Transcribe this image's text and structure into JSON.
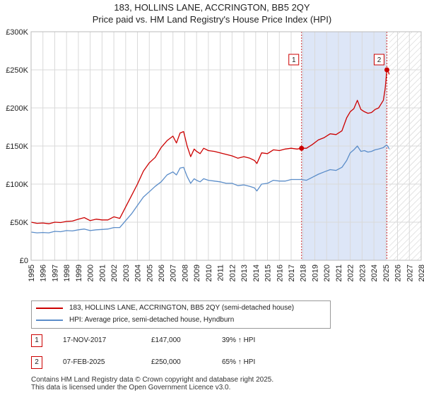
{
  "title_line1": "183, HOLLINS LANE, ACCRINGTON, BB5 2QY",
  "title_line2": "Price paid vs. HM Land Registry's House Price Index (HPI)",
  "chart_data": {
    "type": "line",
    "xlabel": "",
    "ylabel": "",
    "xlim": [
      1995,
      2028
    ],
    "ylim": [
      0,
      300000
    ],
    "yticks": [
      0,
      50000,
      100000,
      150000,
      200000,
      250000,
      300000
    ],
    "ytick_labels": [
      "£0",
      "£50K",
      "£100K",
      "£150K",
      "£200K",
      "£250K",
      "£300K"
    ],
    "xticks": [
      1995,
      1996,
      1997,
      1998,
      1999,
      2000,
      2001,
      2002,
      2003,
      2004,
      2005,
      2006,
      2007,
      2008,
      2009,
      2010,
      2011,
      2012,
      2013,
      2014,
      2015,
      2016,
      2017,
      2018,
      2019,
      2020,
      2021,
      2022,
      2023,
      2024,
      2025,
      2026,
      2027,
      2028
    ],
    "xtick_labels": [
      "1995",
      "1996",
      "1997",
      "1998",
      "1999",
      "2000",
      "2001",
      "2002",
      "2003",
      "2004",
      "2005",
      "2006",
      "2007",
      "2008",
      "2009",
      "2010",
      "2011",
      "2012",
      "2013",
      "2014",
      "2015",
      "2016",
      "2017",
      "2018",
      "2019",
      "2020",
      "2021",
      "2022",
      "2023",
      "2024",
      "2025",
      "2026",
      "2027",
      "2028"
    ],
    "grid": true,
    "shaded_region": {
      "from": 2017.88,
      "to": 2025.1,
      "color": "#dde6f7"
    },
    "hatched_region": {
      "from": 2025.3,
      "to": 2028
    },
    "series": [
      {
        "name": "183, HOLLINS LANE, ACCRINGTON, BB5 2QY (semi-detached house)",
        "color": "#cc0000",
        "x": [
          1995.0,
          1995.5,
          1996.0,
          1996.5,
          1997.0,
          1997.5,
          1998.0,
          1998.5,
          1999.0,
          1999.5,
          2000.0,
          2000.5,
          2001.0,
          2001.5,
          2002.0,
          2002.5,
          2003.0,
          2003.5,
          2004.0,
          2004.5,
          2005.0,
          2005.5,
          2006.0,
          2006.5,
          2007.0,
          2007.3,
          2007.6,
          2007.9,
          2008.2,
          2008.5,
          2008.8,
          2009.0,
          2009.3,
          2009.6,
          2010.0,
          2010.5,
          2011.0,
          2011.5,
          2012.0,
          2012.5,
          2013.0,
          2013.5,
          2013.9,
          2014.1,
          2014.5,
          2015.0,
          2015.5,
          2016.0,
          2016.5,
          2017.0,
          2017.5,
          2017.88,
          2018.3,
          2018.8,
          2019.3,
          2019.8,
          2020.3,
          2020.8,
          2021.3,
          2021.7,
          2022.0,
          2022.3,
          2022.6,
          2022.9,
          2023.2,
          2023.5,
          2023.8,
          2024.1,
          2024.4,
          2024.8,
          2024.95,
          2025.1,
          2025.2,
          2025.3
        ],
        "values": [
          50000,
          48500,
          49000,
          48000,
          50000,
          49500,
          51000,
          51500,
          54000,
          56000,
          52000,
          54000,
          53000,
          53000,
          57000,
          55000,
          70000,
          85000,
          100000,
          117000,
          128000,
          135000,
          148000,
          157000,
          163000,
          154000,
          167000,
          169000,
          150000,
          136000,
          146000,
          143000,
          140000,
          147000,
          144000,
          143000,
          141000,
          139000,
          137000,
          134000,
          136000,
          134000,
          131000,
          127000,
          141000,
          140000,
          145000,
          144000,
          146000,
          147000,
          146000,
          147000,
          147000,
          152000,
          158000,
          161000,
          166000,
          165000,
          170000,
          187000,
          195000,
          199000,
          210000,
          198000,
          195000,
          193000,
          194000,
          198000,
          200000,
          210000,
          225000,
          250000,
          248000,
          244000
        ]
      },
      {
        "name": "HPI: Average price, semi-detached house, Hyndburn",
        "color": "#5b8dc9",
        "x": [
          1995.0,
          1995.5,
          1996.0,
          1996.5,
          1997.0,
          1997.5,
          1998.0,
          1998.5,
          1999.0,
          1999.5,
          2000.0,
          2000.5,
          2001.0,
          2001.5,
          2002.0,
          2002.5,
          2003.0,
          2003.5,
          2004.0,
          2004.5,
          2005.0,
          2005.5,
          2006.0,
          2006.5,
          2007.0,
          2007.3,
          2007.6,
          2007.9,
          2008.2,
          2008.5,
          2008.8,
          2009.0,
          2009.3,
          2009.6,
          2010.0,
          2010.5,
          2011.0,
          2011.5,
          2012.0,
          2012.5,
          2013.0,
          2013.5,
          2013.9,
          2014.1,
          2014.5,
          2015.0,
          2015.5,
          2016.0,
          2016.5,
          2017.0,
          2017.5,
          2017.88,
          2018.3,
          2018.8,
          2019.3,
          2019.8,
          2020.3,
          2020.8,
          2021.3,
          2021.7,
          2022.0,
          2022.3,
          2022.6,
          2022.9,
          2023.2,
          2023.5,
          2023.8,
          2024.1,
          2024.4,
          2024.8,
          2024.95,
          2025.1,
          2025.2,
          2025.3
        ],
        "values": [
          37000,
          36000,
          36500,
          36000,
          38000,
          37500,
          39000,
          38500,
          40000,
          41000,
          39000,
          40000,
          40500,
          41000,
          43000,
          43000,
          52000,
          61000,
          72000,
          83000,
          90000,
          97000,
          103000,
          112000,
          116000,
          112000,
          121000,
          122000,
          110000,
          101000,
          107000,
          105000,
          103000,
          107000,
          105000,
          104000,
          103000,
          101000,
          101000,
          98000,
          99000,
          97000,
          95000,
          91000,
          100000,
          101000,
          105000,
          104000,
          104000,
          106000,
          106000,
          106000,
          105000,
          109000,
          113000,
          116000,
          119000,
          118000,
          122000,
          131000,
          141000,
          145000,
          150000,
          143000,
          144000,
          142000,
          143000,
          145000,
          146000,
          148000,
          150000,
          151000,
          149000,
          146000
        ]
      }
    ],
    "annotations": [
      {
        "label": "1",
        "x": 2017.88,
        "price": 147000
      },
      {
        "label": "2",
        "x": 2025.1,
        "price": 250000
      }
    ]
  },
  "legend": {
    "property_label": "183, HOLLINS LANE, ACCRINGTON, BB5 2QY (semi-detached house)",
    "hpi_label": "HPI: Average price, semi-detached house, Hyndburn",
    "property_color": "#cc0000",
    "hpi_color": "#5b8dc9"
  },
  "transactions": [
    {
      "num": "1",
      "date": "17-NOV-2017",
      "price": "£147,000",
      "hpi": "39% ↑ HPI"
    },
    {
      "num": "2",
      "date": "07-FEB-2025",
      "price": "£250,000",
      "hpi": "65% ↑ HPI"
    }
  ],
  "footer_line1": "Contains HM Land Registry data © Crown copyright and database right 2025.",
  "footer_line2": "This data is licensed under the Open Government Licence v3.0."
}
